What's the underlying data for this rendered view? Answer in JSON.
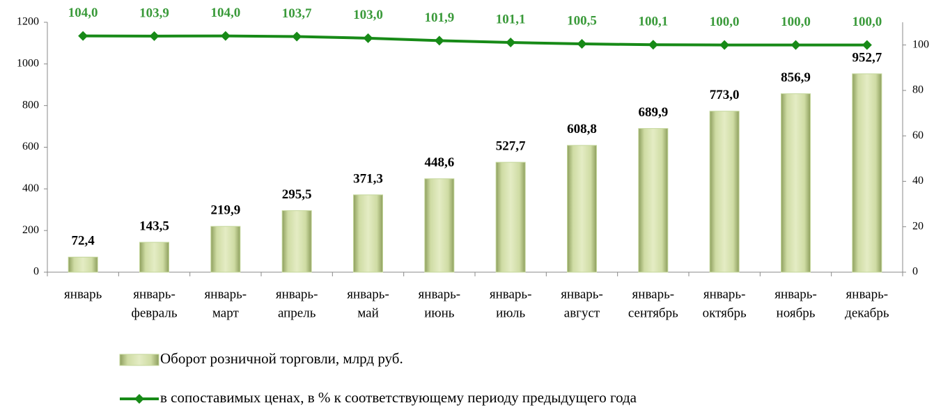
{
  "chart_data": {
    "type": "bar-line",
    "categories": [
      [
        "январь"
      ],
      [
        "январь-",
        "февраль"
      ],
      [
        "январь-",
        "март"
      ],
      [
        "январь-",
        "апрель"
      ],
      [
        "январь-",
        "май"
      ],
      [
        "январь-",
        "июнь"
      ],
      [
        "январь-",
        "июль"
      ],
      [
        "январь-",
        "август"
      ],
      [
        "январь-",
        "сентябрь"
      ],
      [
        "январь-",
        "октябрь"
      ],
      [
        "январь-",
        "ноябрь"
      ],
      [
        "январь-",
        "декабрь"
      ]
    ],
    "series": [
      {
        "name": "Оборот розничной торговли, млрд руб.",
        "type": "bar",
        "color": "#c4d79b",
        "values": [
          72.4,
          143.5,
          219.9,
          295.5,
          371.3,
          448.6,
          527.7,
          608.8,
          689.9,
          773.0,
          856.9,
          952.7
        ],
        "value_labels": [
          "72,4",
          "143,5",
          "219,9",
          "295,5",
          "371,3",
          "448,6",
          "527,7",
          "608,8",
          "689,9",
          "773,0",
          "856,9",
          "952,7"
        ]
      },
      {
        "name": "в сопоставимых ценах, в % к соответствующему периоду предыдущего года",
        "type": "line",
        "axis": "y2",
        "color": "#178a17",
        "label_color": "#3a9a3a",
        "values": [
          104.0,
          103.9,
          104.0,
          103.7,
          103.0,
          101.9,
          101.1,
          100.5,
          100.1,
          100.0,
          100.0,
          100.0
        ],
        "value_labels": [
          "104,0",
          "103,9",
          "104,0",
          "103,7",
          "103,0",
          "101,9",
          "101,1",
          "100,5",
          "100,1",
          "100,0",
          "100,0",
          "100,0"
        ]
      }
    ],
    "ylim": [
      0,
      1200
    ],
    "yticks": [
      0,
      200,
      400,
      600,
      800,
      1000,
      1200
    ],
    "y2lim": [
      0,
      110
    ],
    "y2ticks": [
      0,
      20,
      40,
      60,
      80,
      100
    ],
    "grid": false
  }
}
